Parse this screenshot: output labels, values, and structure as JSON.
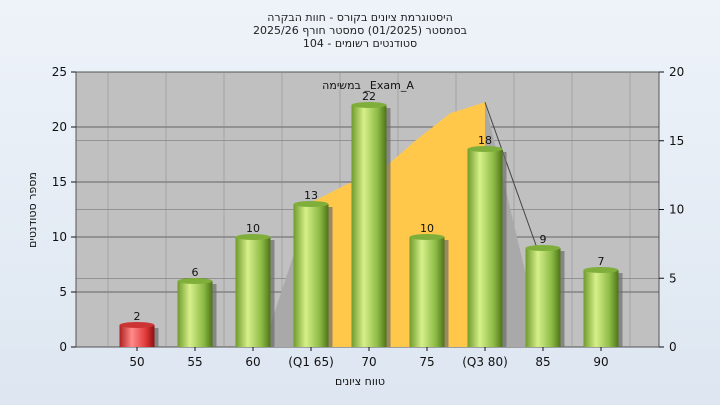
{
  "title_lines": [
    "היסטוגרמת ציונים בקורס - חוות הבקרה",
    "בסמסטר  (01/2025)  סמסטר חורף 2025/26",
    "סטודנטים רשומים - 104"
  ],
  "annotation": "במשימה _Exam_A",
  "colors": {
    "plot_bg": "#c0c0c0",
    "highlight_bar": "#e03a3a",
    "bar": "#9bc850",
    "area_fill": "#ffc84a",
    "area_shadow": "#a9a9a9"
  },
  "chart_data": {
    "type": "bar",
    "title": "",
    "xlabel": "טווח ציונים",
    "ylabel": "מספר סטודנטים",
    "categories": [
      "50",
      "55",
      "60",
      "(Q1 65)",
      "70",
      "75",
      "(Q3 80)",
      "85",
      "90"
    ],
    "values": [
      2,
      6,
      10,
      13,
      22,
      10,
      18,
      9,
      7
    ],
    "highlight_index": 0,
    "ylim": [
      0,
      25
    ],
    "yticks": [
      0,
      5,
      10,
      15,
      20,
      25
    ],
    "y2lim": [
      0,
      20
    ],
    "y2ticks": [
      0,
      5,
      10,
      15,
      20
    ],
    "interquartile_area": {
      "x_from": "(Q1 65)",
      "x_to": "(Q3 80)",
      "y2_values": [
        10.5,
        11.8,
        12.8,
        15.0,
        17.0,
        17.8
      ],
      "y2_peak": 17.8
    },
    "grid": true,
    "legend": "none"
  }
}
